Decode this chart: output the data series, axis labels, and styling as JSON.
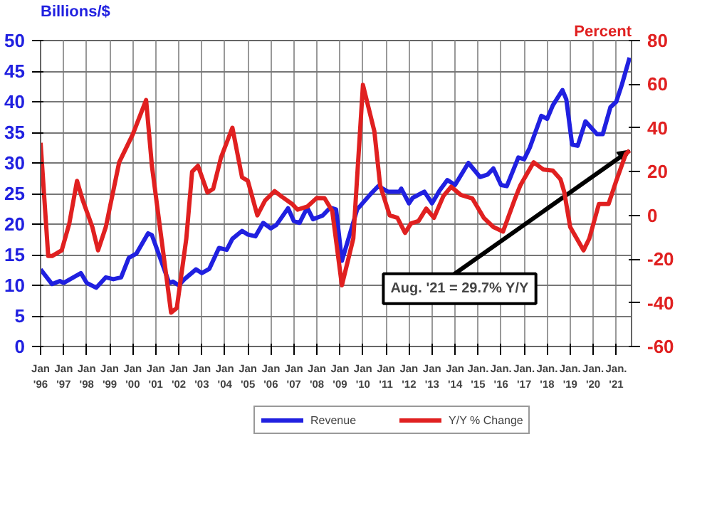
{
  "chart_data": {
    "type": "line",
    "ylabel": "Billions/$",
    "y2label": "Percent",
    "xlim": [
      "1996-01",
      "2021-09"
    ],
    "xticks": [
      {
        "value": "1996-01",
        "label": "Jan\n'96"
      },
      {
        "value": "1997-01",
        "label": "Jan\n'97"
      },
      {
        "value": "1998-01",
        "label": "Jan\n'98"
      },
      {
        "value": "1999-01",
        "label": "Jan\n'99"
      },
      {
        "value": "2000-01",
        "label": "Jan\n'00"
      },
      {
        "value": "2001-01",
        "label": "Jan\n'01"
      },
      {
        "value": "2002-01",
        "label": "Jan\n'02"
      },
      {
        "value": "2003-01",
        "label": "Jan\n'03"
      },
      {
        "value": "2004-01",
        "label": "Jan\n'04"
      },
      {
        "value": "2005-01",
        "label": "Jan\n'05"
      },
      {
        "value": "2006-01",
        "label": "Jan\n'06"
      },
      {
        "value": "2007-01",
        "label": "Jan\n'07"
      },
      {
        "value": "2008-01",
        "label": "Jan\n'08"
      },
      {
        "value": "2009-01",
        "label": "Jan\n'09"
      },
      {
        "value": "2010-01",
        "label": "Jan\n'10"
      },
      {
        "value": "2011-01",
        "label": "Jan\n'11"
      },
      {
        "value": "2012-01",
        "label": "Jan\n'12"
      },
      {
        "value": "2013-01",
        "label": "Jan\n'13"
      },
      {
        "value": "2014-01",
        "label": "Jan\n'14"
      },
      {
        "value": "2015-01",
        "label": "Jan.\n'15"
      },
      {
        "value": "2016-01",
        "label": "Jan.\n'16"
      },
      {
        "value": "2017-01",
        "label": "Jan.\n'17"
      },
      {
        "value": "2018-01",
        "label": "Jan.\n'18"
      },
      {
        "value": "2019-01",
        "label": "Jan.\n'19"
      },
      {
        "value": "2020-01",
        "label": "Jan.\n'20"
      },
      {
        "value": "2021-01",
        "label": "Jan.\n'21"
      }
    ],
    "ylim": [
      0,
      50
    ],
    "yticks": [
      0,
      5,
      10,
      15,
      20,
      25,
      30,
      35,
      40,
      45,
      50
    ],
    "y2lim": [
      -60,
      80
    ],
    "y2ticks": [
      -60,
      -40,
      -20,
      0,
      20,
      40,
      60,
      80
    ],
    "grid": true,
    "legend": "bottom",
    "series": [
      {
        "name": "Revenue",
        "color": "#2020e0",
        "x": [
          "1996-01",
          "1996-07",
          "1996-11",
          "1997-01",
          "1997-10",
          "1998-01",
          "1998-06",
          "1998-11",
          "1999-03",
          "1999-07",
          "1999-11",
          "2000-03",
          "2000-09",
          "2000-11",
          "2001-04",
          "2001-08",
          "2001-10",
          "2002-01",
          "2002-04",
          "2002-10",
          "2003-01",
          "2003-05",
          "2003-10",
          "2004-02",
          "2004-05",
          "2004-10",
          "2005-01",
          "2005-05",
          "2005-09",
          "2006-01",
          "2006-04",
          "2006-10",
          "2007-01",
          "2007-04",
          "2007-08",
          "2007-11",
          "2008-04",
          "2008-08",
          "2008-11",
          "2009-02",
          "2009-10",
          "2010-05",
          "2010-09",
          "2011-02",
          "2011-08",
          "2011-09",
          "2012-01",
          "2012-03",
          "2012-09",
          "2013-01",
          "2013-05",
          "2013-09",
          "2014-01",
          "2014-08",
          "2015-02",
          "2015-06",
          "2015-09",
          "2016-01",
          "2016-04",
          "2016-10",
          "2017-01",
          "2017-04",
          "2017-10",
          "2018-01",
          "2018-04",
          "2018-09",
          "2018-11",
          "2019-02",
          "2019-05",
          "2019-09",
          "2020-03",
          "2020-06",
          "2020-10",
          "2021-01",
          "2021-04",
          "2021-08"
        ],
        "values": [
          12.6,
          10.2,
          10.7,
          10.4,
          12.0,
          10.4,
          9.6,
          11.3,
          11.0,
          11.3,
          14.5,
          15.2,
          18.5,
          18.2,
          13.9,
          10.4,
          10.6,
          10.0,
          11.0,
          12.6,
          12.0,
          12.7,
          16.1,
          15.8,
          17.6,
          18.9,
          18.3,
          18.0,
          20.2,
          19.3,
          19.9,
          22.6,
          20.5,
          20.2,
          22.7,
          20.8,
          21.4,
          22.7,
          22.4,
          14.0,
          22.4,
          24.9,
          26.2,
          25.3,
          25.3,
          25.8,
          23.4,
          24.3,
          25.3,
          23.4,
          25.5,
          27.2,
          26.4,
          30.0,
          27.7,
          28.1,
          29.1,
          26.4,
          26.2,
          30.9,
          30.6,
          32.5,
          37.7,
          37.2,
          39.4,
          41.9,
          40.4,
          33.0,
          32.8,
          36.8,
          34.7,
          34.7,
          39.1,
          40.0,
          42.8,
          47.2
        ]
      },
      {
        "name": "Y/Y % Change",
        "color": "#e02020",
        "axis": "y2",
        "x": [
          "1996-01",
          "1996-05",
          "1996-07",
          "1996-12",
          "1997-04",
          "1997-08",
          "1997-11",
          "1998-04",
          "1998-07",
          "1998-11",
          "1999-06",
          "2000-01",
          "2000-08",
          "2000-11",
          "2001-04",
          "2001-09",
          "2001-12",
          "2002-05",
          "2002-08",
          "2002-11",
          "2003-04",
          "2003-07",
          "2003-11",
          "2004-05",
          "2004-10",
          "2005-01",
          "2005-06",
          "2005-10",
          "2006-03",
          "2006-07",
          "2006-12",
          "2007-03",
          "2007-08",
          "2008-01",
          "2008-05",
          "2008-09",
          "2009-02",
          "2009-08",
          "2010-01",
          "2010-07",
          "2010-10",
          "2011-03",
          "2011-07",
          "2011-11",
          "2012-02",
          "2012-06",
          "2012-10",
          "2013-02",
          "2013-07",
          "2013-11",
          "2014-04",
          "2014-10",
          "2015-04",
          "2015-09",
          "2016-02",
          "2016-08",
          "2016-11",
          "2017-06",
          "2017-11",
          "2018-04",
          "2018-08",
          "2018-10",
          "2019-01",
          "2019-08",
          "2019-11",
          "2020-04",
          "2020-09",
          "2021-01",
          "2021-06",
          "2021-08"
        ],
        "values": [
          33.2,
          -18.6,
          -18.6,
          -16.0,
          -3.7,
          15.8,
          6.8,
          -5.3,
          -16.0,
          -5.3,
          24.3,
          37.0,
          52.8,
          22.7,
          -10.6,
          -44.5,
          -42.4,
          -10.6,
          20.0,
          22.7,
          10.5,
          12.1,
          26.4,
          40.1,
          17.4,
          15.8,
          0.0,
          6.8,
          11.1,
          8.4,
          5.3,
          2.6,
          4.0,
          8.0,
          7.9,
          2.0,
          -32.0,
          -10.6,
          59.7,
          38.5,
          13.7,
          0.0,
          -1.1,
          -8.0,
          -3.7,
          -2.6,
          3.1,
          -1.1,
          8.9,
          13.1,
          9.4,
          7.8,
          -1.1,
          -5.3,
          -7.4,
          7.0,
          13.7,
          24.3,
          21.0,
          20.5,
          16.5,
          10.5,
          -5.3,
          -16.0,
          -10.6,
          5.2,
          5.2,
          15.8,
          28.0,
          29.7
        ]
      }
    ],
    "annotations": [
      "Aug. '21 = 29.7% Y/Y"
    ]
  }
}
